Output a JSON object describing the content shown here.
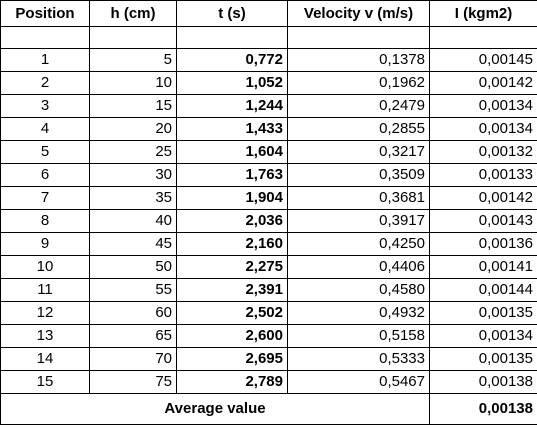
{
  "headers": [
    "Position",
    "h (cm)",
    "t (s)",
    "Velocity v (m/s)",
    "I (kgm2)"
  ],
  "rows": [
    {
      "position": "1",
      "h": "5",
      "t": "0,772",
      "v": "0,1378",
      "i": "0,00145"
    },
    {
      "position": "2",
      "h": "10",
      "t": "1,052",
      "v": "0,1962",
      "i": "0,00142"
    },
    {
      "position": "3",
      "h": "15",
      "t": "1,244",
      "v": "0,2479",
      "i": "0,00134"
    },
    {
      "position": "4",
      "h": "20",
      "t": "1,433",
      "v": "0,2855",
      "i": "0,00134"
    },
    {
      "position": "5",
      "h": "25",
      "t": "1,604",
      "v": "0,3217",
      "i": "0,00132"
    },
    {
      "position": "6",
      "h": "30",
      "t": "1,763",
      "v": "0,3509",
      "i": "0,00133"
    },
    {
      "position": "7",
      "h": "35",
      "t": "1,904",
      "v": "0,3681",
      "i": "0,00142"
    },
    {
      "position": "8",
      "h": "40",
      "t": "2,036",
      "v": "0,3917",
      "i": "0,00143"
    },
    {
      "position": "9",
      "h": "45",
      "t": "2,160",
      "v": "0,4250",
      "i": "0,00136"
    },
    {
      "position": "10",
      "h": "50",
      "t": "2,275",
      "v": "0,4406",
      "i": "0,00141"
    },
    {
      "position": "11",
      "h": "55",
      "t": "2,391",
      "v": "0,4580",
      "i": "0,00144"
    },
    {
      "position": "12",
      "h": "60",
      "t": "2,502",
      "v": "0,4932",
      "i": "0,00135"
    },
    {
      "position": "13",
      "h": "65",
      "t": "2,600",
      "v": "0,5158",
      "i": "0,00134"
    },
    {
      "position": "14",
      "h": "70",
      "t": "2,695",
      "v": "0,5333",
      "i": "0,00135"
    },
    {
      "position": "15",
      "h": "75",
      "t": "2,789",
      "v": "0,5467",
      "i": "0,00138"
    }
  ],
  "average": {
    "label": "Average value",
    "value": "0,00138"
  }
}
